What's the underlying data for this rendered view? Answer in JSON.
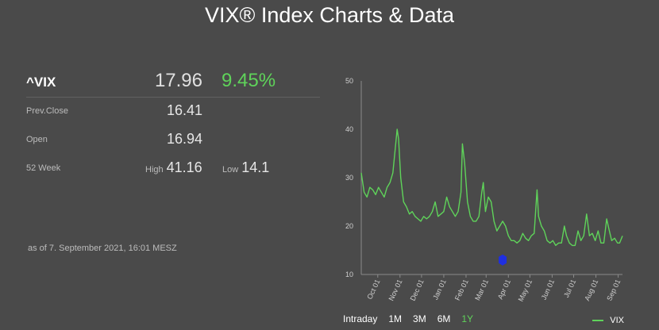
{
  "page": {
    "title": "VIX® Index Charts & Data"
  },
  "quote": {
    "symbol": "^VIX",
    "last": "17.96",
    "change_pct": "9.45%",
    "prev_close_label": "Prev.Close",
    "prev_close": "16.41",
    "open_label": "Open",
    "open": "16.94",
    "week52_label": "52 Week",
    "high_label": "High",
    "high": "41.16",
    "low_label": "Low",
    "low": "14.1",
    "timestamp": "as of 7. September 2021, 16:01 MESZ"
  },
  "colors": {
    "background": "#4a4a4a",
    "series": "#5fd35a",
    "active_range": "#5fd35a",
    "marker": "#1f2fe0"
  },
  "range_buttons": [
    {
      "label": "Intraday",
      "active": false
    },
    {
      "label": "1M",
      "active": false
    },
    {
      "label": "3M",
      "active": false
    },
    {
      "label": "6M",
      "active": false
    },
    {
      "label": "1Y",
      "active": true
    }
  ],
  "chart_data": {
    "type": "line",
    "title": "",
    "xlabel": "",
    "ylabel": "",
    "ylim": [
      10,
      50
    ],
    "yticks": [
      10,
      20,
      30,
      40,
      50
    ],
    "x_start": "2020-09-08",
    "x_end": "2021-09-07",
    "xticks": [
      {
        "label": "Oct 01",
        "date": "2020-10-01"
      },
      {
        "label": "Nov 01",
        "date": "2020-11-01"
      },
      {
        "label": "Dec 01",
        "date": "2020-12-01"
      },
      {
        "label": "Jan 01",
        "date": "2021-01-01"
      },
      {
        "label": "Feb 01",
        "date": "2021-02-01"
      },
      {
        "label": "Mar 01",
        "date": "2021-03-01"
      },
      {
        "label": "Apr 01",
        "date": "2021-04-01"
      },
      {
        "label": "May 01",
        "date": "2021-05-01"
      },
      {
        "label": "Jun 01",
        "date": "2021-06-01"
      },
      {
        "label": "Jul 01",
        "date": "2021-07-01"
      },
      {
        "label": "Aug 01",
        "date": "2021-08-01"
      },
      {
        "label": "Sep 01",
        "date": "2021-09-01"
      }
    ],
    "legend": "bottom-right",
    "series": [
      {
        "name": "VIX",
        "dates": [
          "2020-09-08",
          "2020-09-12",
          "2020-09-16",
          "2020-09-20",
          "2020-09-24",
          "2020-09-28",
          "2020-10-02",
          "2020-10-06",
          "2020-10-10",
          "2020-10-14",
          "2020-10-18",
          "2020-10-22",
          "2020-10-26",
          "2020-10-28",
          "2020-10-30",
          "2020-11-02",
          "2020-11-06",
          "2020-11-10",
          "2020-11-14",
          "2020-11-18",
          "2020-11-22",
          "2020-11-26",
          "2020-11-30",
          "2020-12-04",
          "2020-12-08",
          "2020-12-12",
          "2020-12-16",
          "2020-12-20",
          "2020-12-24",
          "2020-12-28",
          "2021-01-01",
          "2021-01-05",
          "2021-01-09",
          "2021-01-13",
          "2021-01-17",
          "2021-01-21",
          "2021-01-25",
          "2021-01-27",
          "2021-01-30",
          "2021-02-03",
          "2021-02-07",
          "2021-02-11",
          "2021-02-15",
          "2021-02-19",
          "2021-02-23",
          "2021-02-25",
          "2021-02-28",
          "2021-03-04",
          "2021-03-08",
          "2021-03-12",
          "2021-03-16",
          "2021-03-20",
          "2021-03-24",
          "2021-03-28",
          "2021-04-01",
          "2021-04-05",
          "2021-04-09",
          "2021-04-13",
          "2021-04-17",
          "2021-04-21",
          "2021-04-25",
          "2021-04-29",
          "2021-05-03",
          "2021-05-07",
          "2021-05-11",
          "2021-05-13",
          "2021-05-17",
          "2021-05-21",
          "2021-05-25",
          "2021-05-29",
          "2021-06-02",
          "2021-06-06",
          "2021-06-10",
          "2021-06-14",
          "2021-06-18",
          "2021-06-21",
          "2021-06-25",
          "2021-06-29",
          "2021-07-03",
          "2021-07-07",
          "2021-07-11",
          "2021-07-15",
          "2021-07-19",
          "2021-07-23",
          "2021-07-27",
          "2021-07-31",
          "2021-08-04",
          "2021-08-08",
          "2021-08-12",
          "2021-08-16",
          "2021-08-19",
          "2021-08-23",
          "2021-08-27",
          "2021-08-31",
          "2021-09-03",
          "2021-09-07"
        ],
        "values": [
          31,
          27,
          26,
          28,
          27.5,
          26.5,
          28,
          27,
          26,
          28,
          29,
          31,
          37,
          40,
          38,
          30,
          25,
          24,
          22.5,
          23,
          22,
          21.5,
          21,
          22,
          21.5,
          22,
          23,
          25,
          22,
          22.5,
          23,
          26,
          24,
          23,
          22,
          23,
          27,
          37,
          33,
          25,
          22,
          21,
          21,
          22,
          27,
          29,
          23,
          26,
          25,
          21,
          19,
          20,
          21,
          20,
          18,
          17,
          17,
          16.5,
          17,
          18.5,
          17.5,
          17,
          18,
          18.5,
          27.5,
          22,
          20,
          19,
          17,
          16.5,
          17,
          16,
          16.5,
          16.5,
          20,
          18,
          16.5,
          16,
          16,
          19,
          17,
          18,
          22.5,
          18,
          18.5,
          17,
          19,
          16.5,
          16.5,
          21.5,
          19.5,
          17,
          17.5,
          16.5,
          16.5,
          17.96
        ]
      }
    ],
    "markers": [
      {
        "date": "2021-03-24",
        "value": 13,
        "color": "#1f2fe0"
      }
    ]
  }
}
